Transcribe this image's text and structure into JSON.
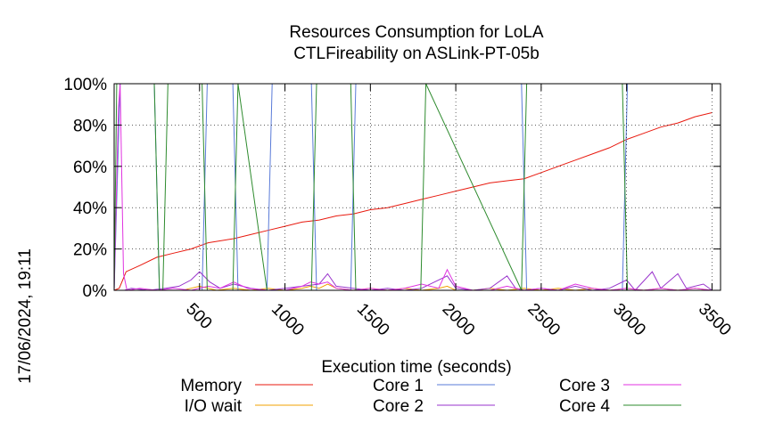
{
  "chart_data": {
    "type": "line",
    "title": "Resources Consumption for LoLA",
    "subtitle": "CTLFireability on ASLink-PT-05b",
    "xlabel": "Execution time (seconds)",
    "ylabel": "",
    "timestamp": "17/06/2024, 19:11",
    "xlim": [
      0,
      3550
    ],
    "ylim": [
      0,
      100
    ],
    "x_ticks": [
      500,
      1000,
      1500,
      2000,
      2500,
      3000,
      3500
    ],
    "y_ticks": [
      0,
      20,
      40,
      60,
      80,
      100
    ],
    "y_tick_labels": [
      "0%",
      "20%",
      "40%",
      "60%",
      "80%",
      "100%"
    ],
    "grid": false,
    "legend_position": "bottom",
    "series": [
      {
        "name": "Memory",
        "color": "#e8190e",
        "points": [
          [
            0,
            0
          ],
          [
            30,
            1
          ],
          [
            50,
            5
          ],
          [
            70,
            9
          ],
          [
            150,
            12
          ],
          [
            250,
            16
          ],
          [
            350,
            18
          ],
          [
            450,
            20
          ],
          [
            550,
            23
          ],
          [
            700,
            25
          ],
          [
            800,
            27
          ],
          [
            900,
            29
          ],
          [
            1000,
            31
          ],
          [
            1100,
            33
          ],
          [
            1200,
            34
          ],
          [
            1300,
            36
          ],
          [
            1400,
            37
          ],
          [
            1500,
            39
          ],
          [
            1600,
            40
          ],
          [
            1700,
            42
          ],
          [
            1800,
            44
          ],
          [
            1900,
            46
          ],
          [
            2000,
            48
          ],
          [
            2100,
            50
          ],
          [
            2200,
            52
          ],
          [
            2300,
            53
          ],
          [
            2400,
            54
          ],
          [
            2500,
            57
          ],
          [
            2600,
            60
          ],
          [
            2700,
            63
          ],
          [
            2800,
            66
          ],
          [
            2900,
            69
          ],
          [
            3000,
            73
          ],
          [
            3100,
            76
          ],
          [
            3200,
            79
          ],
          [
            3300,
            81
          ],
          [
            3400,
            84
          ],
          [
            3500,
            86
          ]
        ]
      },
      {
        "name": "I/O wait",
        "color": "#f0a000",
        "points": [
          [
            0,
            0
          ],
          [
            60,
            0
          ],
          [
            100,
            0
          ],
          [
            200,
            0
          ],
          [
            300,
            0
          ],
          [
            400,
            0
          ],
          [
            450,
            1
          ],
          [
            500,
            2
          ],
          [
            550,
            1
          ],
          [
            600,
            0
          ],
          [
            700,
            1
          ],
          [
            800,
            0
          ],
          [
            900,
            1
          ],
          [
            1000,
            0
          ],
          [
            1100,
            1
          ],
          [
            1150,
            2
          ],
          [
            1200,
            1
          ],
          [
            1250,
            3
          ],
          [
            1300,
            1
          ],
          [
            1400,
            0
          ],
          [
            1500,
            1
          ],
          [
            1600,
            0
          ],
          [
            1700,
            1
          ],
          [
            1800,
            0
          ],
          [
            1900,
            1
          ],
          [
            1950,
            2
          ],
          [
            2000,
            0
          ],
          [
            2100,
            0
          ],
          [
            2200,
            1
          ],
          [
            2300,
            0
          ],
          [
            2400,
            1
          ],
          [
            2500,
            0
          ],
          [
            2600,
            1
          ],
          [
            2700,
            0
          ],
          [
            2800,
            1
          ],
          [
            2900,
            0
          ],
          [
            3000,
            1
          ],
          [
            3100,
            0
          ],
          [
            3200,
            1
          ],
          [
            3300,
            0
          ],
          [
            3400,
            1
          ],
          [
            3500,
            0
          ]
        ]
      },
      {
        "name": "Core 1",
        "color": "#5a7bd8",
        "points": [
          [
            0,
            0
          ],
          [
            35,
            100
          ],
          [
            235,
            100
          ],
          [
            265,
            0
          ],
          [
            515,
            0
          ],
          [
            545,
            100
          ],
          [
            695,
            100
          ],
          [
            725,
            0
          ],
          [
            895,
            0
          ],
          [
            925,
            100
          ],
          [
            1155,
            100
          ],
          [
            1185,
            0
          ],
          [
            1385,
            0
          ],
          [
            1415,
            100
          ],
          [
            2385,
            100
          ],
          [
            2415,
            0
          ],
          [
            2975,
            0
          ],
          [
            3005,
            100
          ],
          [
            3550,
            100
          ]
        ]
      },
      {
        "name": "Core 2",
        "color": "#9933cc",
        "points": [
          [
            0,
            0
          ],
          [
            60,
            0
          ],
          [
            100,
            1
          ],
          [
            200,
            0
          ],
          [
            300,
            1
          ],
          [
            380,
            2
          ],
          [
            450,
            5
          ],
          [
            500,
            9
          ],
          [
            560,
            4
          ],
          [
            620,
            1
          ],
          [
            700,
            3
          ],
          [
            800,
            1
          ],
          [
            900,
            0
          ],
          [
            1000,
            1
          ],
          [
            1100,
            2
          ],
          [
            1200,
            3
          ],
          [
            1250,
            8
          ],
          [
            1300,
            2
          ],
          [
            1400,
            1
          ],
          [
            1500,
            0
          ],
          [
            1600,
            1
          ],
          [
            1700,
            0
          ],
          [
            1800,
            1
          ],
          [
            1950,
            7
          ],
          [
            2000,
            1
          ],
          [
            2100,
            0
          ],
          [
            2200,
            1
          ],
          [
            2300,
            7
          ],
          [
            2350,
            1
          ],
          [
            2400,
            0
          ],
          [
            2500,
            1
          ],
          [
            2600,
            0
          ],
          [
            2700,
            2
          ],
          [
            2800,
            0
          ],
          [
            2900,
            1
          ],
          [
            3000,
            5
          ],
          [
            3050,
            0
          ],
          [
            3150,
            9
          ],
          [
            3200,
            1
          ],
          [
            3300,
            8
          ],
          [
            3350,
            1
          ],
          [
            3450,
            3
          ],
          [
            3500,
            0
          ]
        ]
      },
      {
        "name": "Core 3",
        "color": "#e033e0",
        "points": [
          [
            0,
            0
          ],
          [
            25,
            88
          ],
          [
            35,
            100
          ],
          [
            55,
            8
          ],
          [
            75,
            0
          ],
          [
            150,
            1
          ],
          [
            250,
            0
          ],
          [
            350,
            1
          ],
          [
            450,
            0
          ],
          [
            550,
            2
          ],
          [
            620,
            1
          ],
          [
            700,
            4
          ],
          [
            780,
            1
          ],
          [
            900,
            0
          ],
          [
            1000,
            0
          ],
          [
            1100,
            2
          ],
          [
            1150,
            4
          ],
          [
            1200,
            3
          ],
          [
            1250,
            4
          ],
          [
            1300,
            1
          ],
          [
            1400,
            0
          ],
          [
            1500,
            1
          ],
          [
            1600,
            0
          ],
          [
            1700,
            1
          ],
          [
            1800,
            3
          ],
          [
            1900,
            1
          ],
          [
            1950,
            10
          ],
          [
            2000,
            2
          ],
          [
            2100,
            0
          ],
          [
            2200,
            0
          ],
          [
            2300,
            2
          ],
          [
            2400,
            0
          ],
          [
            2500,
            1
          ],
          [
            2600,
            0
          ],
          [
            2700,
            3
          ],
          [
            2800,
            1
          ],
          [
            2900,
            0
          ],
          [
            3000,
            1
          ],
          [
            3100,
            0
          ],
          [
            3200,
            1
          ],
          [
            3300,
            0
          ],
          [
            3400,
            1
          ],
          [
            3500,
            0
          ]
        ]
      },
      {
        "name": "Core 4",
        "color": "#2e8b2e",
        "points": [
          [
            0,
            0
          ],
          [
            15,
            100
          ],
          [
            235,
            100
          ],
          [
            265,
            0
          ],
          [
            285,
            0
          ],
          [
            315,
            100
          ],
          [
            515,
            100
          ],
          [
            545,
            0
          ],
          [
            695,
            0
          ],
          [
            725,
            100
          ],
          [
            895,
            0
          ],
          [
            1155,
            0
          ],
          [
            1185,
            100
          ],
          [
            1385,
            100
          ],
          [
            1415,
            0
          ],
          [
            1795,
            0
          ],
          [
            1825,
            100
          ],
          [
            2385,
            0
          ],
          [
            2415,
            100
          ],
          [
            2975,
            100
          ],
          [
            3005,
            0
          ],
          [
            3550,
            0
          ]
        ]
      }
    ]
  }
}
